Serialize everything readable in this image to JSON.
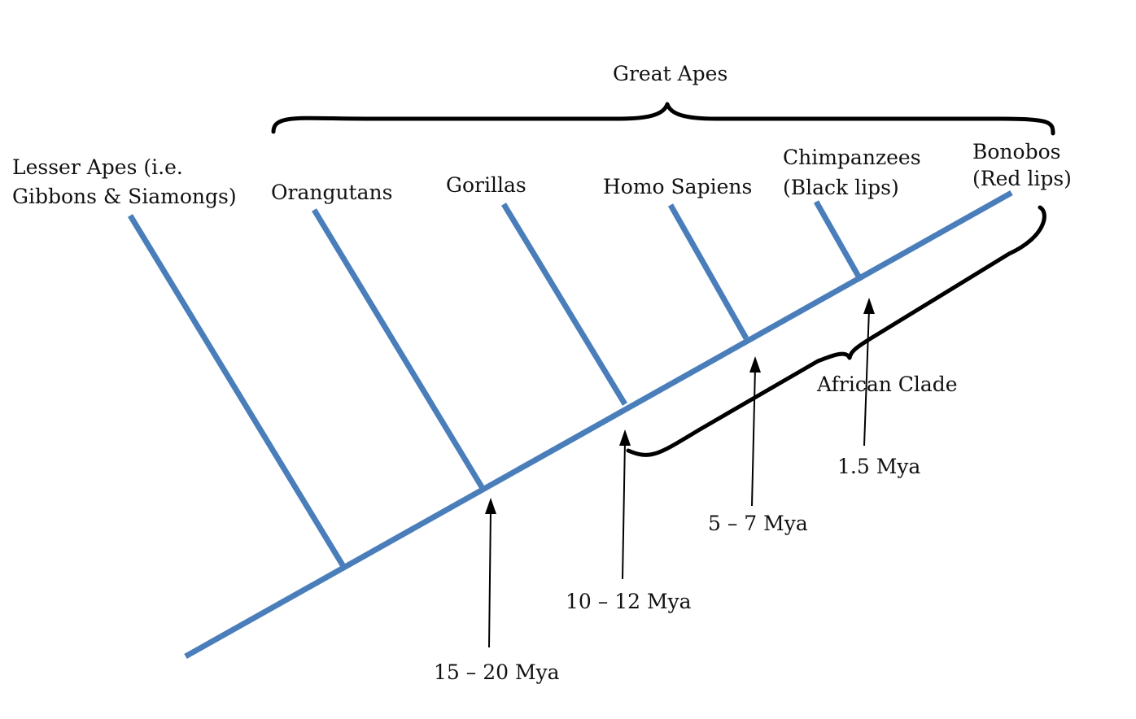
{
  "groups": {
    "great_apes": "Great Apes",
    "african_clade": "African Clade"
  },
  "taxa": {
    "lesser_apes_line1": "Lesser Apes (i.e.",
    "lesser_apes_line2": "Gibbons & Siamongs)",
    "orangutans": "Orangutans",
    "gorillas": "Gorillas",
    "homo_sapiens": "Homo Sapiens",
    "chimpanzees_line1": "Chimpanzees",
    "chimpanzees_line2": "(Black lips)",
    "bonobos_line1": "Bonobos",
    "bonobos_line2": "(Red lips)"
  },
  "divergence_times": {
    "orangutan_split": "15 – 20 Mya",
    "gorilla_split": "10 – 12 Mya",
    "human_split": "5 – 7 Mya",
    "chimp_bonobo_split": "1.5 Mya"
  },
  "colors": {
    "branch": "#4a7ebb",
    "brace": "#000000",
    "text": "#111111"
  }
}
